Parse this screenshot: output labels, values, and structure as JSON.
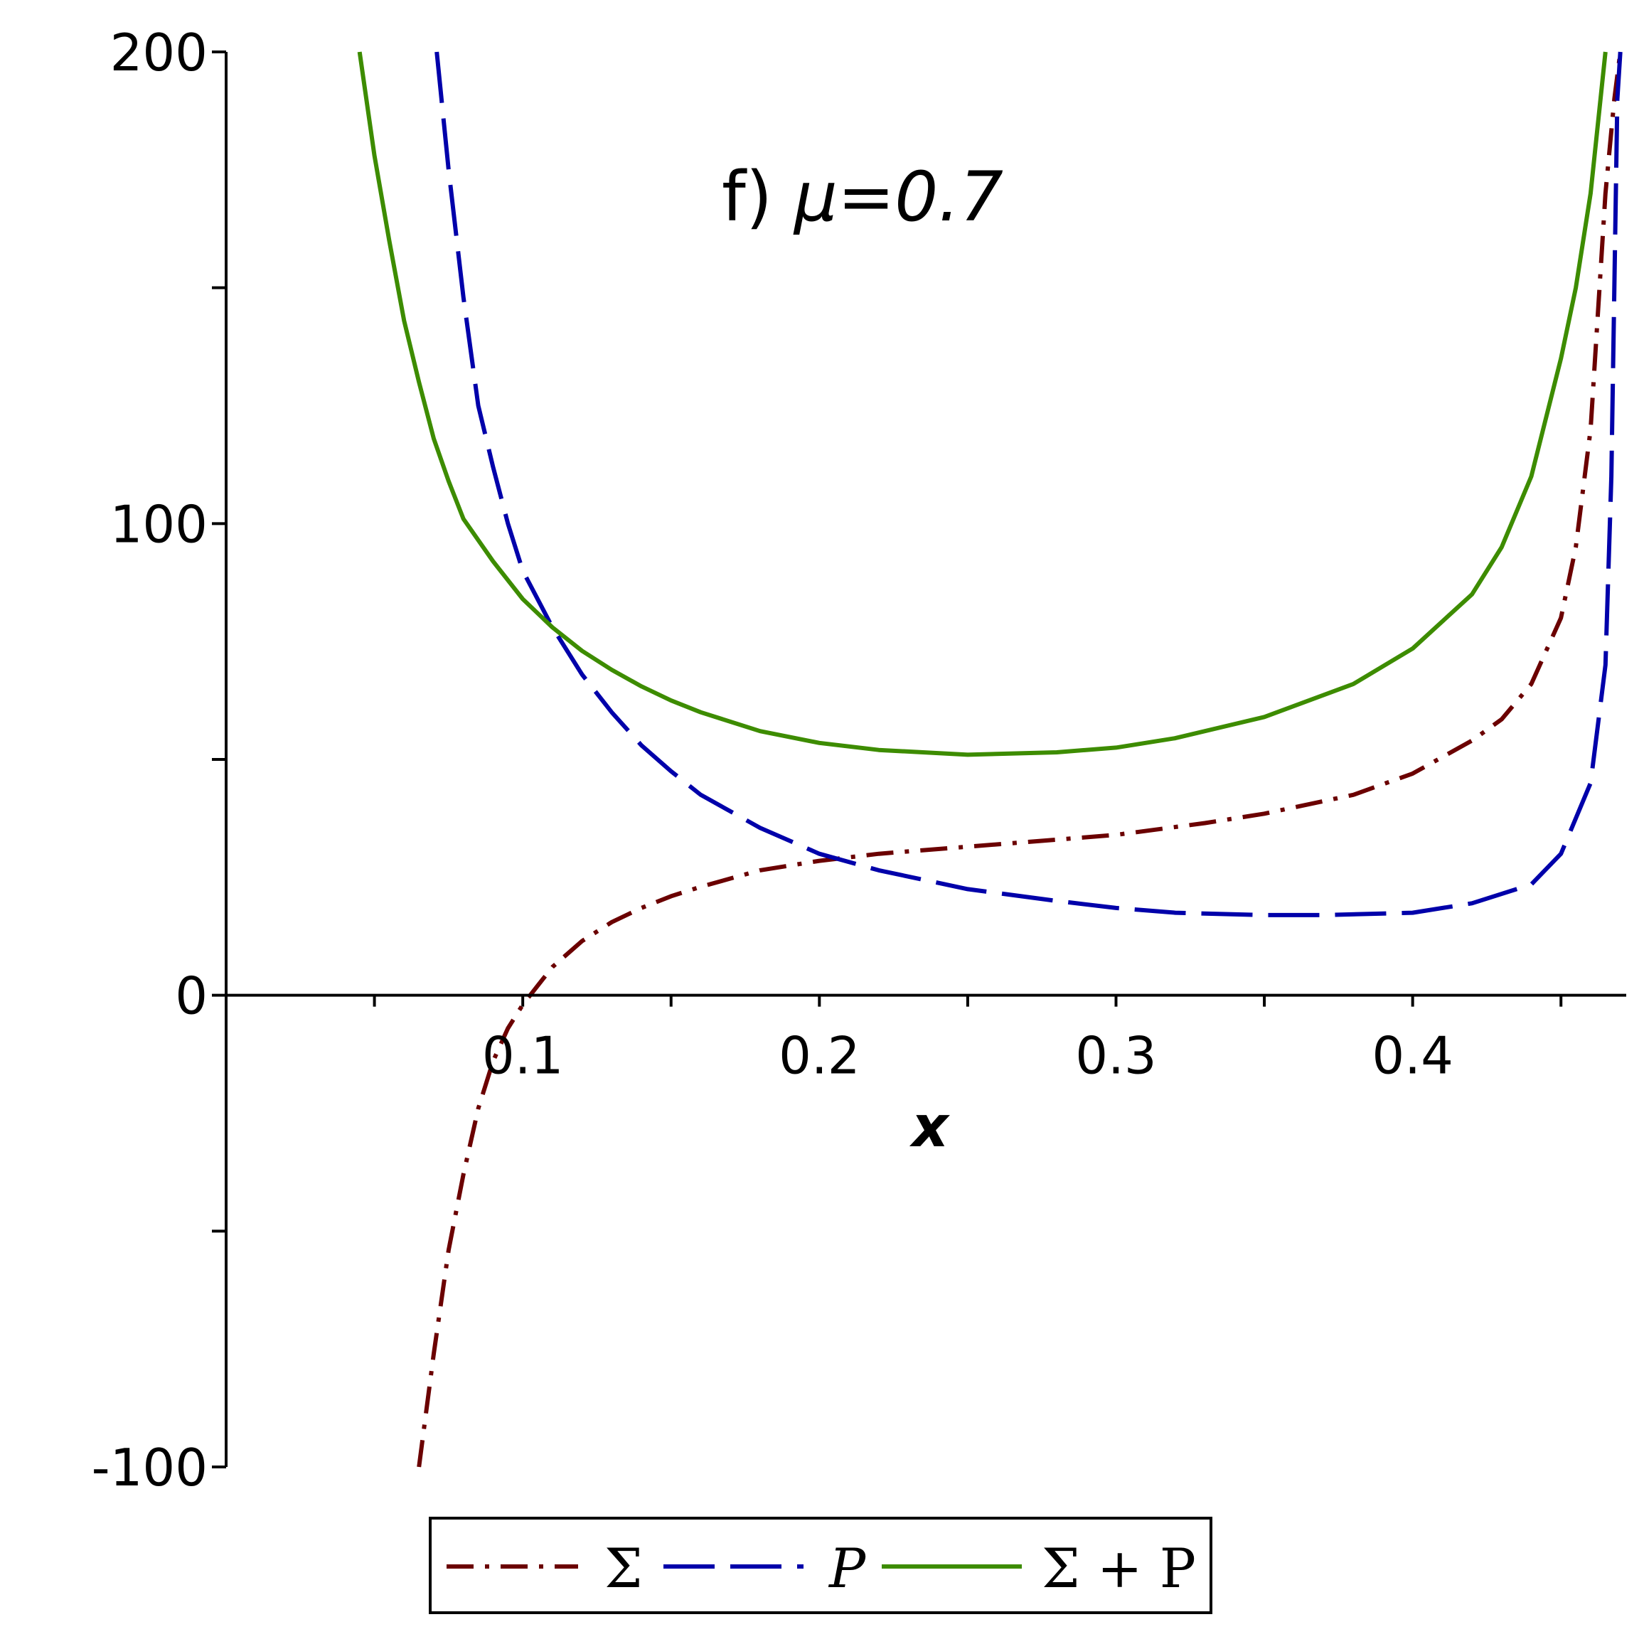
{
  "chart_data": {
    "type": "line",
    "title": "",
    "annotation": {
      "prefix": "f) ",
      "text": "μ=0.7"
    },
    "xlabel": "x",
    "ylabel": "",
    "xlim": [
      0,
      0.472
    ],
    "ylim": [
      -100,
      200
    ],
    "x_ticks": [
      0.05,
      0.1,
      0.15,
      0.2,
      0.25,
      0.3,
      0.35,
      0.4,
      0.45
    ],
    "x_tick_labels": [
      {
        "value": 0.1,
        "label": "0.1"
      },
      {
        "value": 0.2,
        "label": "0.2"
      },
      {
        "value": 0.3,
        "label": "0.3"
      },
      {
        "value": 0.4,
        "label": "0.4"
      }
    ],
    "y_ticks": [
      -100,
      -50,
      0,
      50,
      100,
      150,
      200
    ],
    "y_tick_labels": [
      {
        "value": 200,
        "label": "200"
      },
      {
        "value": 100,
        "label": "100"
      },
      {
        "value": 0,
        "label": "0"
      },
      {
        "value": -100,
        "label": "-100"
      }
    ],
    "grid": false,
    "legend_position": "bottom",
    "series": [
      {
        "name": "Σ",
        "color": "#6b0000",
        "style": "dashdot",
        "x": [
          0.065,
          0.07,
          0.075,
          0.08,
          0.085,
          0.09,
          0.095,
          0.1,
          0.105,
          0.11,
          0.12,
          0.13,
          0.14,
          0.15,
          0.16,
          0.18,
          0.2,
          0.22,
          0.25,
          0.28,
          0.3,
          0.33,
          0.35,
          0.38,
          0.4,
          0.42,
          0.43,
          0.44,
          0.45,
          0.455,
          0.46,
          0.465,
          0.468,
          0.47
        ],
        "y": [
          -100,
          -76,
          -54,
          -38,
          -24,
          -14,
          -7,
          -2,
          2,
          6,
          11.5,
          15.5,
          18.5,
          21,
          23,
          26.5,
          28.5,
          30,
          31.5,
          33,
          34,
          36.5,
          38.5,
          42.5,
          47,
          54,
          58.5,
          66,
          80,
          95,
          120,
          170,
          190,
          200
        ]
      },
      {
        "name": "P",
        "color": "#0000aa",
        "style": "dashed",
        "x": [
          0.071,
          0.075,
          0.08,
          0.085,
          0.09,
          0.095,
          0.1,
          0.11,
          0.12,
          0.13,
          0.14,
          0.15,
          0.16,
          0.18,
          0.2,
          0.22,
          0.25,
          0.28,
          0.3,
          0.32,
          0.35,
          0.37,
          0.4,
          0.42,
          0.44,
          0.45,
          0.46,
          0.465,
          0.467,
          0.468,
          0.469,
          0.47
        ],
        "y": [
          200,
          175,
          148,
          125,
          112,
          100,
          90,
          78,
          68,
          60,
          53,
          47.5,
          42.5,
          35.5,
          30,
          26.5,
          22.5,
          20,
          18.5,
          17.5,
          17,
          17,
          17.5,
          19.5,
          23.5,
          30,
          45,
          70,
          110,
          150,
          190,
          200
        ]
      },
      {
        "name": "Σ + P",
        "color": "#3d8c00",
        "style": "solid",
        "x": [
          0.045,
          0.05,
          0.055,
          0.06,
          0.065,
          0.07,
          0.075,
          0.08,
          0.09,
          0.1,
          0.11,
          0.12,
          0.13,
          0.14,
          0.15,
          0.16,
          0.18,
          0.2,
          0.22,
          0.25,
          0.28,
          0.3,
          0.32,
          0.35,
          0.38,
          0.4,
          0.42,
          0.43,
          0.44,
          0.45,
          0.455,
          0.46,
          0.465
        ],
        "y": [
          200,
          178,
          160,
          143,
          130,
          118,
          109,
          101,
          92,
          84,
          78,
          73,
          69,
          65.5,
          62.5,
          60,
          56,
          53.5,
          52,
          51,
          51.5,
          52.5,
          54.5,
          59,
          66,
          73.5,
          85,
          95,
          110,
          135,
          150,
          170,
          200
        ]
      }
    ]
  }
}
